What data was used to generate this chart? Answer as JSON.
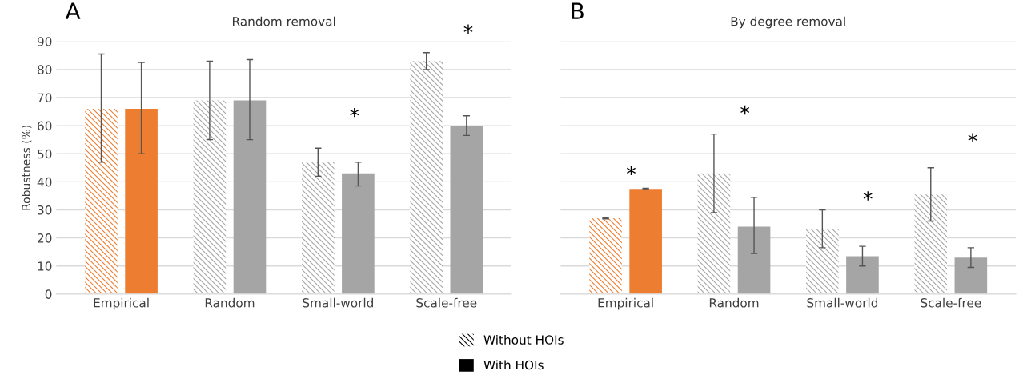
{
  "chart_data": [
    {
      "type": "bar",
      "title": "Random removal",
      "ylabel": "Robustness (%)",
      "categories": [
        "Empirical",
        "Random",
        "Small-world",
        "Scale-free"
      ],
      "ylim": [
        0,
        90
      ],
      "yticks": [
        0,
        10,
        20,
        30,
        40,
        50,
        60,
        70,
        80,
        90
      ],
      "grid": "y",
      "legend": "bottom",
      "series": [
        {
          "name": "Without HOIs",
          "color": "#000000",
          "colors": [
            "#ed7d31",
            "#a5a5a5",
            "#a5a5a5",
            "#a5a5a5"
          ],
          "values": [
            66,
            69,
            47,
            83
          ],
          "errors": [
            [
              47,
              85.5
            ],
            [
              55,
              83
            ],
            [
              42,
              52
            ],
            [
              80,
              86
            ]
          ]
        },
        {
          "name": "With HOIs",
          "color": "#000000",
          "colors": [
            "#ed7d31",
            "#a5a5a5",
            "#a5a5a5",
            "#a5a5a5"
          ],
          "values": [
            66,
            69,
            43,
            60
          ],
          "errors": [
            [
              50,
              82.5
            ],
            [
              55,
              83.5
            ],
            [
              38.5,
              47
            ],
            [
              56.5,
              63.5
            ]
          ]
        }
      ],
      "annotations": [
        "A",
        "*",
        "*"
      ]
    },
    {
      "type": "bar",
      "title": "By degree removal",
      "categories": [
        "Empirical",
        "Random",
        "Small-world",
        "Scale-free"
      ],
      "ylim": [
        0,
        90
      ],
      "yticks": [
        0,
        10,
        20,
        30,
        40,
        50,
        60,
        70,
        80,
        90
      ],
      "tick_labels": "x",
      "grid": "y",
      "series": [
        {
          "colors": [
            "#ed7d31",
            "#a5a5a5",
            "#a5a5a5",
            "#a5a5a5"
          ],
          "values": [
            27,
            43,
            23,
            35.5
          ],
          "errors": [
            [
              26.8,
              27.2
            ],
            [
              29,
              57
            ],
            [
              16.5,
              30
            ],
            [
              26,
              45
            ]
          ]
        },
        {
          "colors": [
            "#ed7d31",
            "#a5a5a5",
            "#a5a5a5",
            "#a5a5a5"
          ],
          "values": [
            37.5,
            24,
            13.5,
            13
          ],
          "errors": [
            [
              37.3,
              37.7
            ],
            [
              14.5,
              34.5
            ],
            [
              10,
              17
            ],
            [
              9.5,
              16.5
            ]
          ]
        }
      ],
      "annotations": [
        "B",
        "*",
        "*",
        "*",
        "*"
      ]
    }
  ]
}
